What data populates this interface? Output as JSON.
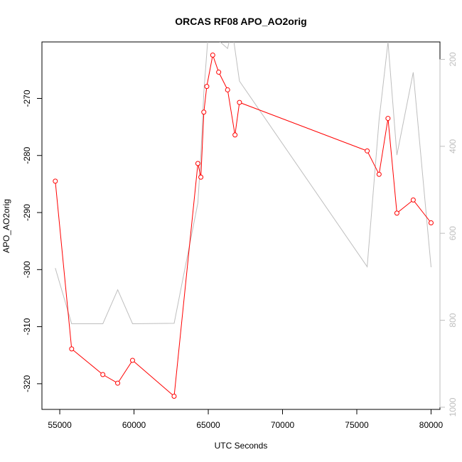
{
  "chart_data": {
    "type": "line",
    "title": "ORCAS RF08 APO_AO2orig",
    "xlabel": "UTC Seconds",
    "ylabel": "APO_AO2orig",
    "xlim": [
      53800,
      80600
    ],
    "ylim": [
      -324.5,
      -260.1
    ],
    "x_ticks": [
      "55000",
      "60000",
      "65000",
      "70000",
      "75000",
      "80000"
    ],
    "y_ticks": [
      "-320",
      "-310",
      "-300",
      "-290",
      "-280",
      "-270"
    ],
    "y2_ticks": [
      "200",
      "400",
      "600",
      "800",
      "1000"
    ],
    "y2lim": [
      160,
      1005
    ],
    "y2_reversed": true,
    "series": [
      {
        "color": "#ff0000",
        "markers": "open-circle",
        "points": [
          [
            54700,
            -284.5
          ],
          [
            55800,
            -313.9
          ],
          [
            57900,
            -318.4
          ],
          [
            58900,
            -319.9
          ],
          [
            59900,
            -315.9
          ],
          [
            62700,
            -322.2
          ],
          [
            64300,
            -281.4
          ],
          [
            64500,
            -283.8
          ],
          [
            64700,
            -272.4
          ],
          [
            64900,
            -267.9
          ],
          [
            65300,
            -262.4
          ],
          [
            65700,
            -265.4
          ],
          [
            66300,
            -268.5
          ],
          [
            66800,
            -276.4
          ],
          [
            67100,
            -270.7
          ],
          [
            75700,
            -279.2
          ],
          [
            76500,
            -283.3
          ],
          [
            77100,
            -273.5
          ],
          [
            77700,
            -290.1
          ],
          [
            78800,
            -287.8
          ],
          [
            80000,
            -291.8
          ]
        ]
      },
      {
        "color": "#bebebe",
        "markers": "none",
        "axis": "right",
        "points": [
          [
            54700,
            680
          ],
          [
            55800,
            808
          ],
          [
            57900,
            808
          ],
          [
            58900,
            730
          ],
          [
            59900,
            808
          ],
          [
            62700,
            807
          ],
          [
            64300,
            530
          ],
          [
            64500,
            420
          ],
          [
            64700,
            275
          ],
          [
            65000,
            140
          ],
          [
            65700,
            130
          ],
          [
            65800,
            160
          ],
          [
            66300,
            175
          ],
          [
            66600,
            130
          ],
          [
            67100,
            250
          ],
          [
            75700,
            677
          ],
          [
            76500,
            340
          ],
          [
            77100,
            160
          ],
          [
            77700,
            420
          ],
          [
            78800,
            230
          ],
          [
            80000,
            678
          ]
        ]
      }
    ]
  }
}
